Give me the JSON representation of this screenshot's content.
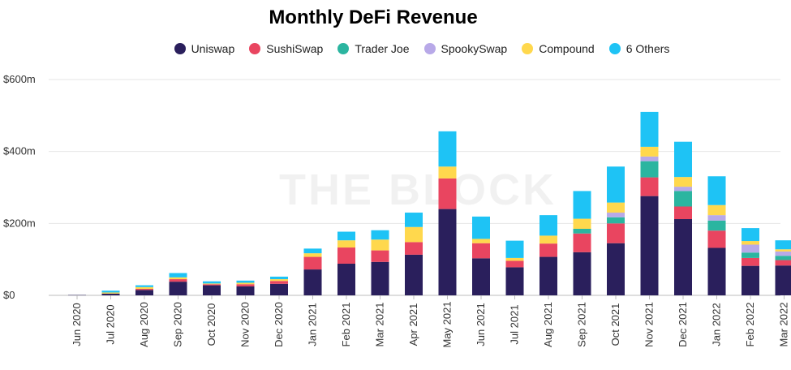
{
  "chart_data": {
    "type": "bar",
    "stacked": true,
    "title": "Monthly DeFi Revenue",
    "watermark": "THE BLOCK",
    "ylim": [
      0,
      600
    ],
    "yticks": [
      {
        "value": 0,
        "label": "$0"
      },
      {
        "value": 200,
        "label": "$200m"
      },
      {
        "value": 400,
        "label": "$400m"
      },
      {
        "value": 600,
        "label": "$600m"
      }
    ],
    "grid": true,
    "legend_position": "top-center",
    "categories": [
      "Jun 2020",
      "Jul 2020",
      "Aug 2020",
      "Sep 2020",
      "Oct 2020",
      "Nov 2020",
      "Dec 2020",
      "Jan 2021",
      "Feb 2021",
      "Mar 2021",
      "Apr 2021",
      "May 2021",
      "Jun 2021",
      "Jul 2021",
      "Aug 2021",
      "Sep 2021",
      "Oct 2021",
      "Nov 2021",
      "Dec 2021",
      "Jan 2022",
      "Feb 2022",
      "Mar 2022"
    ],
    "series": [
      {
        "name": "Uniswap",
        "color": "#2a1f5c",
        "values": [
          1,
          5,
          15,
          38,
          28,
          25,
          32,
          72,
          88,
          93,
          113,
          240,
          103,
          78,
          107,
          120,
          145,
          276,
          212,
          132,
          82,
          83
        ]
      },
      {
        "name": "SushiSwap",
        "color": "#e94560",
        "values": [
          0,
          0,
          3,
          7,
          3,
          6,
          8,
          35,
          45,
          32,
          35,
          85,
          42,
          18,
          37,
          52,
          55,
          52,
          35,
          48,
          22,
          15
        ]
      },
      {
        "name": "Trader Joe",
        "color": "#2bb5a0",
        "values": [
          0,
          0,
          0,
          0,
          0,
          0,
          0,
          0,
          0,
          0,
          0,
          0,
          0,
          0,
          0,
          13,
          17,
          45,
          43,
          28,
          15,
          12
        ]
      },
      {
        "name": "SpookySwap",
        "color": "#b8a9e8",
        "values": [
          0,
          0,
          0,
          0,
          0,
          0,
          0,
          0,
          0,
          0,
          0,
          0,
          0,
          0,
          0,
          0,
          13,
          13,
          12,
          15,
          22,
          12
        ]
      },
      {
        "name": "Compound",
        "color": "#ffd84d",
        "values": [
          0,
          3,
          5,
          5,
          2,
          4,
          5,
          10,
          20,
          30,
          42,
          33,
          12,
          8,
          22,
          28,
          28,
          27,
          27,
          28,
          10,
          6
        ]
      },
      {
        "name": "6 Others",
        "color": "#1ec3f5",
        "values": [
          0,
          5,
          5,
          12,
          6,
          6,
          7,
          13,
          24,
          26,
          40,
          98,
          62,
          48,
          57,
          77,
          100,
          97,
          98,
          80,
          36,
          25
        ]
      }
    ]
  }
}
